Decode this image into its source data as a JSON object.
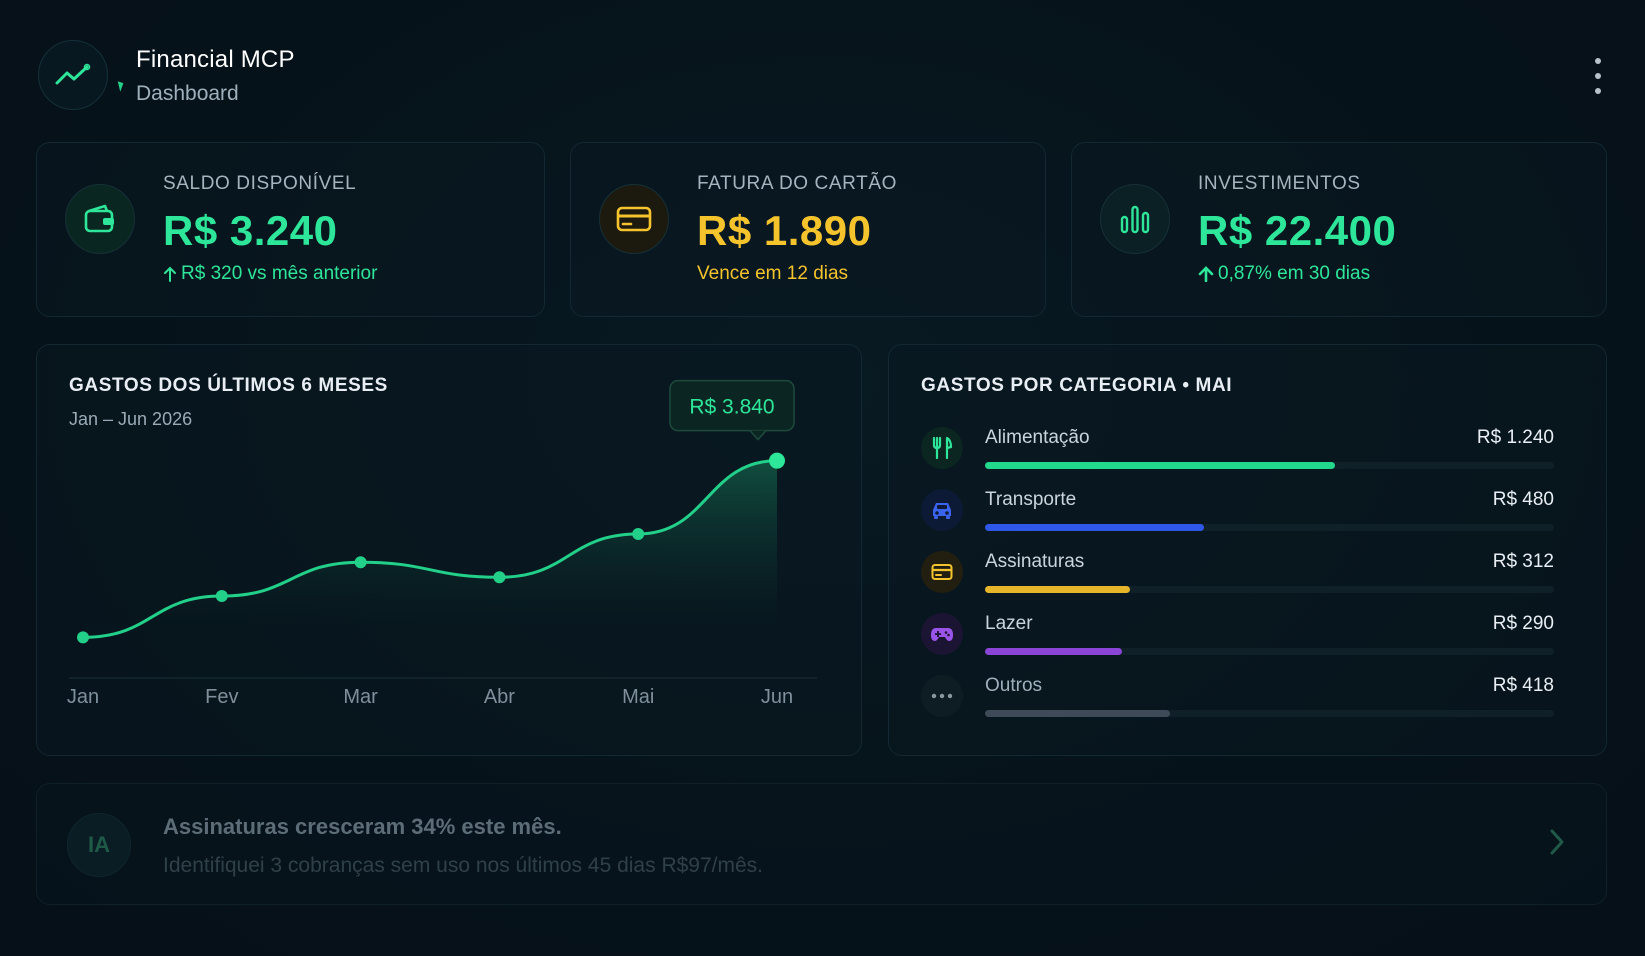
{
  "header": {
    "title": "Financial MCP",
    "subtitle": "Dashboard",
    "logo_icon": "trend-up-icon",
    "menu_icon": "more-vertical-icon"
  },
  "stats": [
    {
      "label": "SALDO DISPONÍVEL",
      "value": "R$ 3.240",
      "sub": "R$ 320 vs mês anterior",
      "icon": "wallet-icon",
      "color": "#2ee69a"
    },
    {
      "label": "FATURA DO CARTÃO",
      "value": "R$ 1.890",
      "sub": "Vence em 12 dias",
      "icon": "credit-card-icon",
      "color": "#f5c32c"
    },
    {
      "label": "INVESTIMENTOS",
      "value": "R$ 22.400",
      "sub": "0,87% em 30 dias",
      "icon": "bar-chart-icon",
      "color": "#2ee69a"
    }
  ],
  "spending_chart": {
    "title": "GASTOS DOS ÚLTIMOS 6 MESES",
    "subtitle": "Jan – Jun 2026",
    "tooltip": "R$ 3.840"
  },
  "chart_data": {
    "type": "area",
    "title": "GASTOS DOS ÚLTIMOS 6 MESES",
    "subtitle": "Jan – Jun 2026",
    "categories": [
      "Jan",
      "Fev",
      "Mar",
      "Abr",
      "Mai",
      "Jun"
    ],
    "values": [
      2900,
      3120,
      3300,
      3220,
      3450,
      3840
    ],
    "ylim": [
      2700,
      3950
    ],
    "grid": false,
    "highlight": {
      "category": "Jun",
      "label": "R$ 3.840"
    },
    "color": "#22d08a"
  },
  "categories_panel": {
    "title": "GASTOS POR CATEGORIA • MAI",
    "items": [
      {
        "name": "Alimentação",
        "value": "R$ 1.240",
        "fraction": 0.615,
        "color": "#22d88c",
        "icon": "fork-knife-icon",
        "icon_bg": "#0b2620"
      },
      {
        "name": "Transporte",
        "value": "R$ 480",
        "fraction": 0.385,
        "color": "#2f57e8",
        "icon": "car-icon",
        "icon_bg": "#0d1a35"
      },
      {
        "name": "Assinaturas",
        "value": "R$ 312",
        "fraction": 0.255,
        "color": "#e6b52a",
        "icon": "credit-card-icon",
        "icon_bg": "#221f10"
      },
      {
        "name": "Lazer",
        "value": "R$ 290",
        "fraction": 0.24,
        "color": "#8a45d6",
        "icon": "gamepad-icon",
        "icon_bg": "#1c1433"
      },
      {
        "name": "Outros",
        "value": "R$ 418",
        "fraction": 0.325,
        "color": "#3f4a59",
        "icon": "more-horizontal-icon",
        "icon_bg": "#0e1c24"
      }
    ]
  },
  "insight": {
    "badge": "IA",
    "title": "Assinaturas cresceram 34% este mês.",
    "text": "Identifiquei 3 cobranças sem uso nos últimos 45 dias R$97/mês.",
    "arrow_icon": "chevron-right-icon"
  }
}
